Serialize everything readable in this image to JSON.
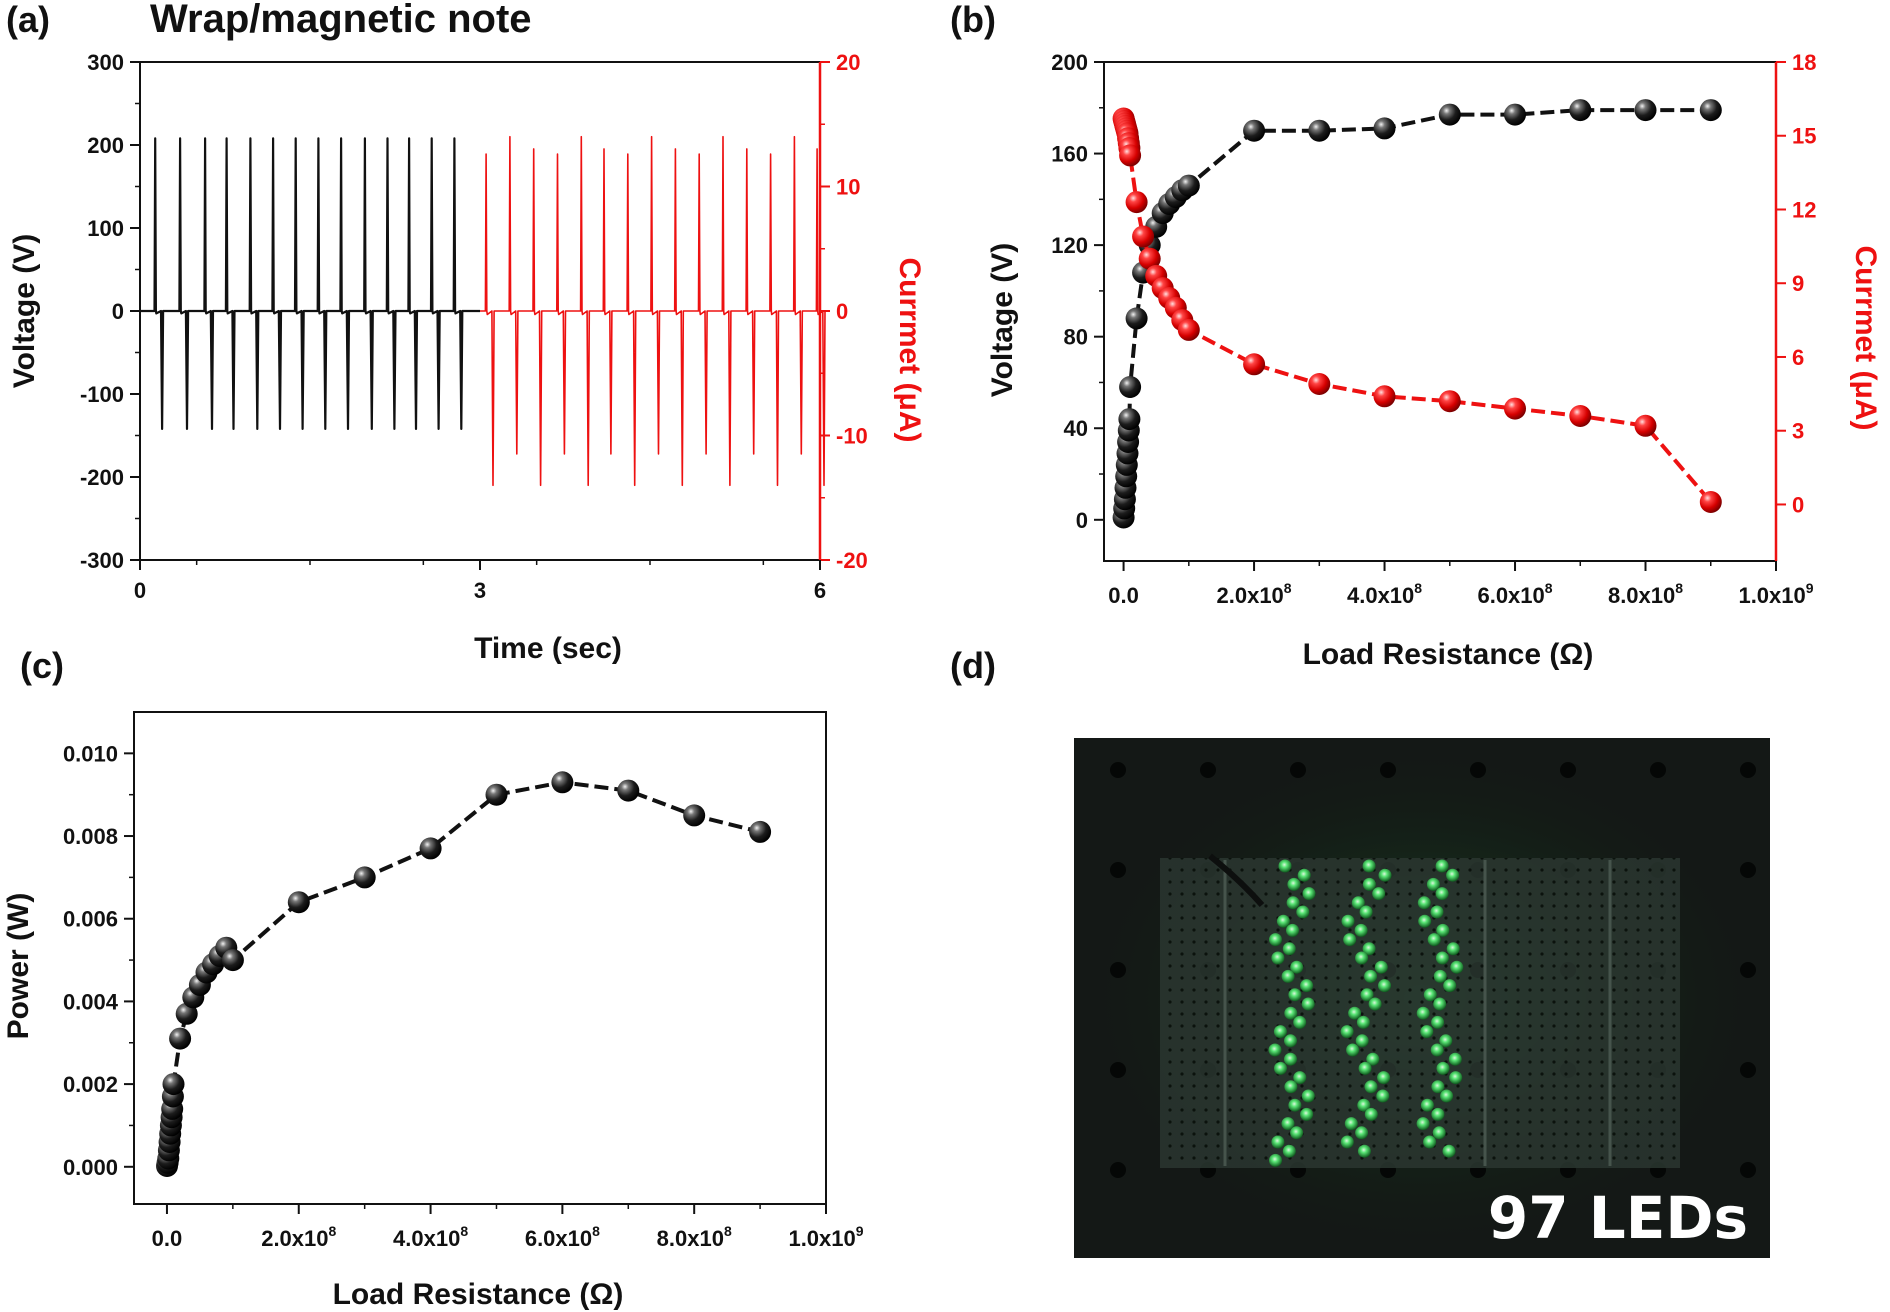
{
  "chart_data": [
    {
      "id": "a",
      "type": "line",
      "panel_label": "(a)",
      "title": "Wrap/magnetic note",
      "xlabel": "Time (sec)",
      "ylabel": "Voltage (V)",
      "y2label": "Currmet (μA)",
      "xlim": [
        0,
        6
      ],
      "ylim": [
        -300,
        300
      ],
      "y2lim": [
        -20,
        20
      ],
      "xticks": [
        0,
        3,
        6
      ],
      "yticks": [
        -300,
        -200,
        -100,
        0,
        100,
        200,
        300
      ],
      "y2ticks": [
        -20,
        -10,
        0,
        10,
        20
      ],
      "series": [
        {
          "name": "Voltage",
          "axis": "left",
          "color": "#111111",
          "t_range": [
            0,
            3
          ],
          "peak_times": [
            0.14,
            0.36,
            0.58,
            0.77,
            0.98,
            1.18,
            1.38,
            1.58,
            1.78,
            1.99,
            2.19,
            2.38,
            2.58,
            2.78
          ],
          "positive_peak": 208,
          "negative_peak": -142
        },
        {
          "name": "Currmet",
          "axis": "right",
          "color": "#ee1111",
          "t_range": [
            3,
            6
          ],
          "peak_times": [
            3.06,
            3.27,
            3.48,
            3.69,
            3.9,
            4.1,
            4.31,
            4.52,
            4.73,
            4.94,
            5.15,
            5.36,
            5.57,
            5.78,
            5.98
          ],
          "positive_peak": 14,
          "negative_peak": -14
        }
      ]
    },
    {
      "id": "b",
      "type": "scatter",
      "panel_label": "(b)",
      "xlabel": "Load Resistance (Ω)",
      "ylabel": "Voltage (V)",
      "y2label": "Currmet (μA)",
      "xlim": [
        -30000000.0,
        1000000000.0
      ],
      "ylim": [
        -18,
        200
      ],
      "y2lim": [
        -2.3,
        18
      ],
      "xtick_labels": [
        {
          "v": 0,
          "m": "0.0",
          "e": ""
        },
        {
          "v": 200000000.0,
          "m": "2.0x10",
          "e": "8"
        },
        {
          "v": 400000000.0,
          "m": "4.0x10",
          "e": "8"
        },
        {
          "v": 600000000.0,
          "m": "6.0x10",
          "e": "8"
        },
        {
          "v": 800000000.0,
          "m": "8.0x10",
          "e": "8"
        },
        {
          "v": 1000000000.0,
          "m": "1.0x10",
          "e": "9"
        }
      ],
      "yticks": [
        0,
        40,
        80,
        120,
        160,
        200
      ],
      "y2ticks": [
        0,
        3,
        6,
        9,
        12,
        15,
        18
      ],
      "series": [
        {
          "name": "Voltage",
          "axis": "left",
          "color": "#111111",
          "x": [
            0,
            1000000.0,
            2000000.0,
            3000000.0,
            4000000.0,
            5000000.0,
            6000000.0,
            7000000.0,
            8000000.0,
            9000000.0,
            10000000.0,
            20000000.0,
            30000000.0,
            40000000.0,
            50000000.0,
            60000000.0,
            70000000.0,
            80000000.0,
            90000000.0,
            100000000.0,
            200000000.0,
            300000000.0,
            400000000.0,
            500000000.0,
            600000000.0,
            700000000.0,
            800000000.0,
            900000000.0
          ],
          "y": [
            1,
            5,
            9,
            14,
            19,
            24,
            29,
            34,
            39,
            44,
            58,
            88,
            108,
            120,
            128,
            134,
            138,
            141,
            144,
            146,
            170,
            170,
            171,
            177,
            177,
            179,
            179,
            179
          ]
        },
        {
          "name": "Currmet",
          "axis": "right",
          "color": "#ee1111",
          "x": [
            0,
            1000000.0,
            2000000.0,
            3000000.0,
            4000000.0,
            5000000.0,
            6000000.0,
            7000000.0,
            8000000.0,
            9000000.0,
            10000000.0,
            20000000.0,
            30000000.0,
            40000000.0,
            50000000.0,
            60000000.0,
            70000000.0,
            80000000.0,
            90000000.0,
            100000000.0,
            200000000.0,
            300000000.0,
            400000000.0,
            500000000.0,
            600000000.0,
            700000000.0,
            800000000.0,
            900000000.0
          ],
          "y": [
            15.7,
            15.6,
            15.5,
            15.4,
            15.3,
            15.2,
            15.1,
            14.9,
            14.7,
            14.5,
            14.2,
            12.3,
            10.9,
            10.0,
            9.3,
            8.8,
            8.4,
            8.0,
            7.5,
            7.1,
            5.7,
            4.9,
            4.4,
            4.2,
            3.9,
            3.6,
            3.2,
            0.1
          ]
        }
      ]
    },
    {
      "id": "c",
      "type": "scatter",
      "panel_label": "(c)",
      "xlabel": "Load Resistance (Ω)",
      "ylabel": "Power (W)",
      "xlim": [
        -50000000.0,
        1000000000.0
      ],
      "ylim": [
        -0.0009,
        0.011
      ],
      "xtick_labels": [
        {
          "v": 0,
          "m": "0.0",
          "e": ""
        },
        {
          "v": 200000000.0,
          "m": "2.0x10",
          "e": "8"
        },
        {
          "v": 400000000.0,
          "m": "4.0x10",
          "e": "8"
        },
        {
          "v": 600000000.0,
          "m": "6.0x10",
          "e": "8"
        },
        {
          "v": 800000000.0,
          "m": "8.0x10",
          "e": "8"
        },
        {
          "v": 1000000000.0,
          "m": "1.0x10",
          "e": "9"
        }
      ],
      "yticks": [
        "0.000",
        "0.002",
        "0.004",
        "0.006",
        "0.008",
        "0.010"
      ],
      "series": [
        {
          "name": "Power",
          "color": "#111111",
          "x": [
            0,
            1000000.0,
            2000000.0,
            3000000.0,
            4000000.0,
            5000000.0,
            6000000.0,
            7000000.0,
            8000000.0,
            9000000.0,
            10000000.0,
            20000000.0,
            30000000.0,
            40000000.0,
            50000000.0,
            60000000.0,
            70000000.0,
            80000000.0,
            90000000.0,
            100000000.0,
            200000000.0,
            300000000.0,
            400000000.0,
            500000000.0,
            600000000.0,
            700000000.0,
            800000000.0,
            900000000.0
          ],
          "y": [
            2e-05,
            0.0001,
            0.0002,
            0.0004,
            0.0006,
            0.0008,
            0.001,
            0.0012,
            0.0014,
            0.0017,
            0.002,
            0.0031,
            0.0037,
            0.0041,
            0.0044,
            0.0047,
            0.0049,
            0.0051,
            0.0053,
            0.005,
            0.0064,
            0.007,
            0.0077,
            0.009,
            0.0093,
            0.0091,
            0.0085,
            0.0081
          ]
        }
      ]
    }
  ],
  "panel_d": {
    "label": "(d)",
    "caption": "97 LEDs",
    "led_count": 97,
    "led_color": "#3ddc5a"
  }
}
